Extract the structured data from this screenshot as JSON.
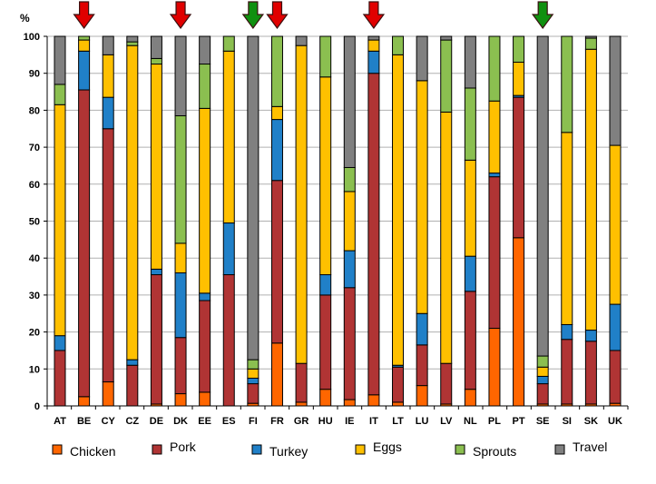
{
  "chart_data": {
    "type": "bar",
    "stacked": true,
    "ylabel": "%",
    "ylim": [
      0,
      100
    ],
    "yticks": [
      0,
      10,
      20,
      30,
      40,
      50,
      60,
      70,
      80,
      90,
      100
    ],
    "grid": true,
    "legend_position": "bottom",
    "categories": [
      "AT",
      "BE",
      "CY",
      "CZ",
      "DE",
      "DK",
      "EE",
      "ES",
      "FI",
      "FR",
      "GR",
      "HU",
      "IE",
      "IT",
      "LT",
      "LU",
      "LV",
      "NL",
      "PL",
      "PT",
      "SE",
      "SI",
      "SK",
      "UK"
    ],
    "series": [
      {
        "name": "Chicken",
        "color": "#FF6600",
        "values": [
          0,
          2.5,
          6.5,
          0,
          0.5,
          3.3,
          3.7,
          0,
          0.7,
          17,
          1,
          4.5,
          1.7,
          3,
          1,
          5.5,
          0.5,
          4.5,
          21,
          45.5,
          0.5,
          0.5,
          0.5,
          0.7
        ]
      },
      {
        "name": "Pork",
        "color": "#B03434",
        "values": [
          15,
          83,
          68.5,
          11,
          35,
          15.2,
          24.8,
          35.5,
          5.3,
          44,
          10.5,
          25.5,
          30.3,
          87,
          9.5,
          11,
          11,
          26.5,
          41,
          38,
          5.5,
          17.5,
          17,
          14.3
        ]
      },
      {
        "name": "Turkey",
        "color": "#2080C8",
        "values": [
          4,
          10.5,
          8.5,
          1.5,
          1.5,
          17.5,
          2,
          14,
          1.5,
          16.5,
          0,
          5.5,
          10,
          6,
          0.5,
          8.5,
          0,
          9.5,
          1,
          0.5,
          2,
          4,
          3,
          12.5
        ]
      },
      {
        "name": "Eggs",
        "color": "#FFC000",
        "values": [
          62.5,
          3,
          11.5,
          85,
          55.5,
          8,
          50,
          46.5,
          2.5,
          3.5,
          86,
          53.5,
          16,
          3,
          84,
          63,
          68,
          26,
          19.5,
          9,
          2.5,
          52,
          76,
          43
        ]
      },
      {
        "name": "Sprouts",
        "color": "#8BBF50",
        "values": [
          5.5,
          1,
          0,
          1,
          1.5,
          34.5,
          12,
          4,
          2.5,
          19,
          0,
          11,
          6.5,
          0,
          5,
          0,
          19.5,
          19.5,
          17.5,
          7,
          3,
          26,
          3,
          0
        ]
      },
      {
        "name": "Travel",
        "color": "#808080",
        "values": [
          13,
          0,
          5,
          1.5,
          6,
          21.5,
          7.5,
          0,
          87.5,
          0,
          2.5,
          0,
          35.5,
          1,
          0,
          12,
          1,
          14,
          0,
          0,
          86.5,
          0,
          0.5,
          29.5
        ]
      }
    ],
    "annotations": [
      {
        "type": "arrow-down",
        "category": "BE",
        "color": "#E00000"
      },
      {
        "type": "arrow-down",
        "category": "DK",
        "color": "#E00000"
      },
      {
        "type": "arrow-down",
        "category": "FI",
        "color": "#109010"
      },
      {
        "type": "arrow-down",
        "category": "FR",
        "color": "#E00000"
      },
      {
        "type": "arrow-down",
        "category": "IT",
        "color": "#E00000"
      },
      {
        "type": "arrow-down",
        "category": "SE",
        "color": "#109010"
      }
    ]
  }
}
